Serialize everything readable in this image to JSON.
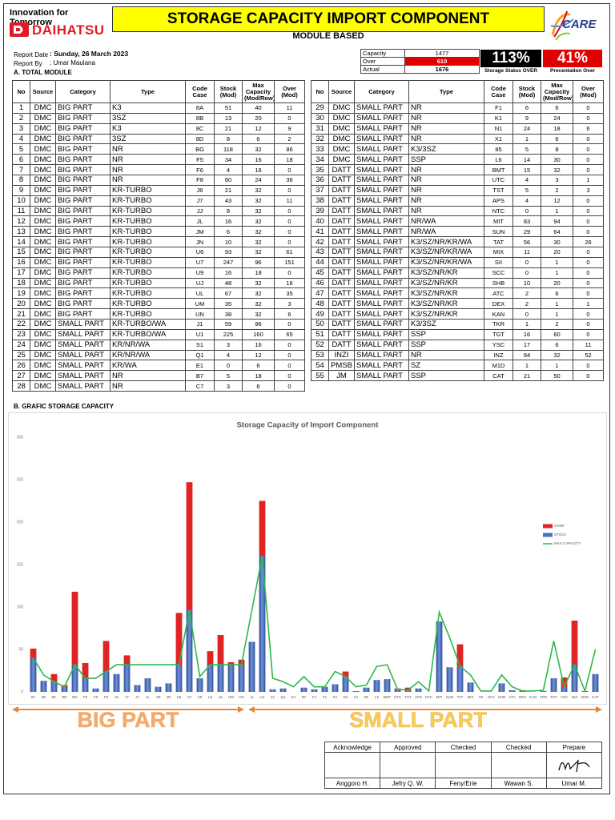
{
  "header": {
    "tagline": "Innovation for Tomorrow",
    "brand": "DAIHATSU",
    "title": "STORAGE CAPACITY IMPORT COMPONENT",
    "subtitle": "MODULE BASED",
    "logo": "CARE"
  },
  "report": {
    "date_label": "Report Date",
    "date": ": Sunday, 26 March 2023",
    "by_label": "Report By",
    "by": ": Umar Maulana"
  },
  "summary": {
    "capacity_label": "Capacity",
    "capacity": 1477,
    "over_label": "Over",
    "over": 610,
    "actual_label": "Actual",
    "actual": 1676,
    "status_value": "113%",
    "status_label": "Storage Status OVER",
    "percent_value": "41%",
    "percent_label": "Precentation Over"
  },
  "section_a": "A. TOTAL MODULE",
  "section_b": "B. GRAFIC STORAGE CAPACITY",
  "table": {
    "headers": [
      "No",
      "Source",
      "Category",
      "Type",
      "Code Case",
      "Stock (Mod)",
      "Max Capacity (Mod/Row)",
      "Over (Mod)"
    ],
    "rows": [
      [
        1,
        "DMC",
        "BIG PART",
        "K3",
        "8A",
        51,
        40,
        11
      ],
      [
        2,
        "DMC",
        "BIG PART",
        "3SZ",
        "8B",
        13,
        20,
        0
      ],
      [
        3,
        "DMC",
        "BIG PART",
        "K3",
        "8C",
        21,
        12,
        9
      ],
      [
        4,
        "DMC",
        "BIG PART",
        "3SZ",
        "8D",
        8,
        6,
        2
      ],
      [
        5,
        "DMC",
        "BIG PART",
        "NR",
        "BG",
        118,
        32,
        86
      ],
      [
        6,
        "DMC",
        "BIG PART",
        "NR",
        "F5",
        34,
        16,
        18
      ],
      [
        7,
        "DMC",
        "BIG PART",
        "NR",
        "F6",
        4,
        16,
        0
      ],
      [
        8,
        "DMC",
        "BIG PART",
        "NR",
        "F8",
        60,
        24,
        36
      ],
      [
        9,
        "DMC",
        "BIG PART",
        "KR-TURBO",
        "J6",
        21,
        32,
        0
      ],
      [
        10,
        "DMC",
        "BIG PART",
        "KR-TURBO",
        "J7",
        43,
        32,
        11
      ],
      [
        11,
        "DMC",
        "BIG PART",
        "KR-TURBO",
        "JJ",
        8,
        32,
        0
      ],
      [
        12,
        "DMC",
        "BIG PART",
        "KR-TURBO",
        "JL",
        16,
        32,
        0
      ],
      [
        13,
        "DMC",
        "BIG PART",
        "KR-TURBO",
        "JM",
        6,
        32,
        0
      ],
      [
        14,
        "DMC",
        "BIG PART",
        "KR-TURBO",
        "JN",
        10,
        32,
        0
      ],
      [
        15,
        "DMC",
        "BIG PART",
        "KR-TURBO",
        "U6",
        93,
        32,
        61
      ],
      [
        16,
        "DMC",
        "BIG PART",
        "KR-TURBO",
        "U7",
        247,
        96,
        151
      ],
      [
        17,
        "DMC",
        "BIG PART",
        "KR-TURBO",
        "U9",
        16,
        18,
        0
      ],
      [
        18,
        "DMC",
        "BIG PART",
        "KR-TURBO",
        "UJ",
        48,
        32,
        16
      ],
      [
        19,
        "DMC",
        "BIG PART",
        "KR-TURBO",
        "UL",
        67,
        32,
        35
      ],
      [
        20,
        "DMC",
        "BIG PART",
        "KR-TURBO",
        "UM",
        35,
        32,
        3
      ],
      [
        21,
        "DMC",
        "BIG PART",
        "KR-TURBO",
        "UN",
        38,
        32,
        6
      ],
      [
        22,
        "DMC",
        "SMALL PART",
        "KR-TURBO/WA",
        "J1",
        59,
        96,
        0
      ],
      [
        23,
        "DMC",
        "SMALL PART",
        "KR-TURBO/WA",
        "U1",
        225,
        160,
        65
      ],
      [
        24,
        "DMC",
        "SMALL PART",
        "KR/NR/WA",
        "S1",
        3,
        16,
        0
      ],
      [
        25,
        "DMC",
        "SMALL PART",
        "KR/NR/WA",
        "Q1",
        4,
        12,
        0
      ],
      [
        26,
        "DMC",
        "SMALL PART",
        "KR/WA",
        "E1",
        0,
        6,
        0
      ],
      [
        27,
        "DMC",
        "SMALL PART",
        "NR",
        "B7",
        5,
        18,
        0
      ],
      [
        28,
        "DMC",
        "SMALL PART",
        "NR",
        "C7",
        3,
        6,
        0
      ],
      [
        29,
        "DMC",
        "SMALL PART",
        "NR",
        "F1",
        6,
        6,
        0
      ],
      [
        30,
        "DMC",
        "SMALL PART",
        "NR",
        "K1",
        9,
        24,
        0
      ],
      [
        31,
        "DMC",
        "SMALL PART",
        "NR",
        "N1",
        24,
        18,
        6
      ],
      [
        32,
        "DMC",
        "SMALL PART",
        "NR",
        "X1",
        1,
        6,
        0
      ],
      [
        33,
        "DMC",
        "SMALL PART",
        "K3/3SZ",
        "85",
        5,
        8,
        0
      ],
      [
        34,
        "DMC",
        "SMALL PART",
        "SSP",
        "L6",
        14,
        30,
        0
      ],
      [
        35,
        "DATT",
        "SMALL PART",
        "NR",
        "BMT",
        15,
        32,
        0
      ],
      [
        36,
        "DATT",
        "SMALL PART",
        "NR",
        "UTC",
        4,
        3,
        1
      ],
      [
        37,
        "DATT",
        "SMALL PART",
        "NR",
        "TST",
        5,
        2,
        3
      ],
      [
        38,
        "DATT",
        "SMALL PART",
        "NR",
        "APS",
        4,
        12,
        0
      ],
      [
        39,
        "DATT",
        "SMALL PART",
        "NR",
        "NTC",
        0,
        1,
        0
      ],
      [
        40,
        "DATT",
        "SMALL PART",
        "NR/WA",
        "MIT",
        83,
        94,
        0
      ],
      [
        41,
        "DATT",
        "SMALL PART",
        "NR/WA",
        "SUN",
        29,
        64,
        0
      ],
      [
        42,
        "DATT",
        "SMALL PART",
        "K3/SZ/NR/KR/WA",
        "TAT",
        56,
        30,
        26
      ],
      [
        43,
        "DATT",
        "SMALL PART",
        "K3/SZ/NR/KR/WA",
        "MIX",
        11,
        20,
        0
      ],
      [
        44,
        "DATT",
        "SMALL PART",
        "K3/SZ/NR/KR/WA",
        "SII",
        0,
        1,
        0
      ],
      [
        45,
        "DATT",
        "SMALL PART",
        "K3/SZ/NR/KR",
        "SCC",
        0,
        1,
        0
      ],
      [
        46,
        "DATT",
        "SMALL PART",
        "K3/SZ/NR/KR",
        "SHB",
        10,
        20,
        0
      ],
      [
        47,
        "DATT",
        "SMALL PART",
        "K3/SZ/NR/KR",
        "ATC",
        2,
        6,
        0
      ],
      [
        48,
        "DATT",
        "SMALL PART",
        "K3/SZ/NR/KR",
        "DEX",
        2,
        1,
        1
      ],
      [
        49,
        "DATT",
        "SMALL PART",
        "K3/SZ/NR/KR",
        "KAN",
        0,
        1,
        0
      ],
      [
        50,
        "DATT",
        "SMALL PART",
        "K3/3SZ",
        "TKR",
        1,
        2,
        0
      ],
      [
        51,
        "DATT",
        "SMALL PART",
        "SSP",
        "TGT",
        16,
        60,
        0
      ],
      [
        52,
        "DATT",
        "SMALL PART",
        "SSP",
        "YSC",
        17,
        6,
        11
      ],
      [
        53,
        "INZI",
        "SMALL PART",
        "NR",
        "INZ",
        84,
        32,
        52
      ],
      [
        54,
        "PMSB",
        "SMALL PART",
        "SZ",
        "M1D",
        1,
        1,
        0
      ],
      [
        55,
        "JM",
        "SMALL PART",
        "SSP",
        "CAT",
        21,
        50,
        0
      ]
    ]
  },
  "chart_data": {
    "type": "bar",
    "stacked": true,
    "title": "Storage Capacity of Import Component",
    "categories": [
      "8A",
      "8B",
      "8C",
      "8D",
      "BG",
      "F5",
      "F6",
      "F8",
      "J6",
      "J7",
      "JJ",
      "JL",
      "JM",
      "JN",
      "U6",
      "U7",
      "U9",
      "UJ",
      "UL",
      "UM",
      "UN",
      "J1",
      "U1",
      "S1",
      "Q1",
      "E1",
      "B7",
      "C7",
      "F1",
      "K1",
      "N1",
      "X1",
      "85",
      "L6",
      "BMT",
      "UTC",
      "TST",
      "APS",
      "NTC",
      "MIT",
      "SUN",
      "TAT",
      "MIX",
      "SII",
      "SCC",
      "SHB",
      "ATC",
      "DEX",
      "KAN",
      "TKR",
      "TGT",
      "YSC",
      "INZ",
      "M1D",
      "CAT"
    ],
    "series": [
      {
        "name": "OVER",
        "color": "#e02424",
        "values": [
          11,
          0,
          9,
          2,
          86,
          18,
          0,
          36,
          0,
          11,
          0,
          0,
          0,
          0,
          61,
          151,
          0,
          16,
          35,
          3,
          6,
          0,
          65,
          0,
          0,
          0,
          0,
          0,
          0,
          0,
          6,
          0,
          0,
          0,
          0,
          1,
          3,
          0,
          0,
          0,
          0,
          26,
          0,
          0,
          0,
          0,
          0,
          1,
          0,
          0,
          0,
          11,
          52,
          0,
          0
        ]
      },
      {
        "name": "STOCK",
        "color": "#4472c4",
        "values": [
          40,
          13,
          12,
          6,
          32,
          16,
          4,
          24,
          21,
          32,
          8,
          16,
          6,
          10,
          32,
          96,
          16,
          32,
          32,
          32,
          32,
          59,
          160,
          3,
          4,
          0,
          5,
          3,
          6,
          9,
          18,
          1,
          5,
          14,
          15,
          3,
          2,
          4,
          0,
          83,
          29,
          30,
          11,
          0,
          0,
          10,
          2,
          1,
          0,
          1,
          16,
          6,
          32,
          1,
          21
        ]
      },
      {
        "name": "MAX CAPACITY",
        "type": "line",
        "color": "#2db84a",
        "values": [
          40,
          20,
          12,
          6,
          32,
          16,
          16,
          24,
          32,
          32,
          32,
          32,
          32,
          32,
          32,
          96,
          18,
          32,
          32,
          32,
          32,
          96,
          160,
          16,
          12,
          6,
          18,
          6,
          6,
          24,
          18,
          6,
          8,
          30,
          32,
          3,
          2,
          12,
          1,
          94,
          64,
          30,
          20,
          1,
          1,
          20,
          6,
          1,
          1,
          2,
          60,
          6,
          32,
          1,
          50
        ]
      }
    ],
    "ylim": [
      0,
      300
    ],
    "yticks": [
      0,
      50,
      100,
      150,
      200,
      250,
      300
    ],
    "grid": false,
    "legend": "right"
  },
  "group_labels": [
    "BIG PART",
    "SMALL PART"
  ],
  "signatures": {
    "roles": [
      "Acknowledge",
      "Approved",
      "Checked",
      "Checked",
      "Prepare"
    ],
    "names": [
      "Anggoro H.",
      "Jefry Q. W.",
      "Feny/Erie",
      "Wawan S.",
      "Umar M."
    ]
  }
}
